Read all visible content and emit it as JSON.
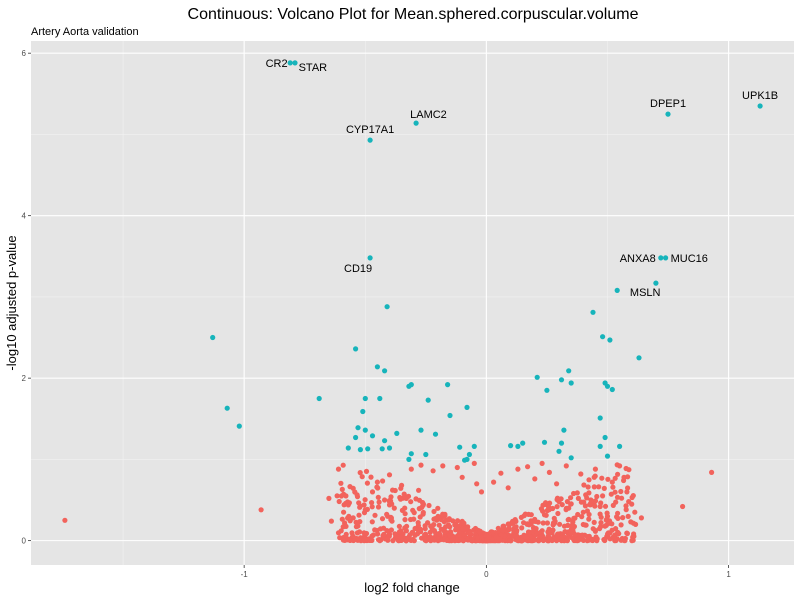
{
  "chart_data": {
    "type": "scatter",
    "title": "Continuous: Volcano Plot for Mean.sphered.corpuscular.volume",
    "subtitle": "Artery Aorta validation",
    "xlabel": "log2 fold change",
    "ylabel": "-log10 adjusted p-value",
    "xlim": [
      -1.88,
      1.27
    ],
    "ylim": [
      -0.3,
      6.15
    ],
    "x_ticks": [
      -1,
      0,
      1
    ],
    "x_tick_labels": [
      "-1",
      "0",
      "1"
    ],
    "y_ticks": [
      0,
      2,
      4,
      6
    ],
    "y_tick_labels": [
      "0",
      "2",
      "4",
      "6"
    ],
    "grid": true,
    "colors": {
      "panel": "#e5e5e5",
      "grid_major": "#ffffff",
      "significant": "#17b4bb",
      "not_significant": "#f2635c"
    },
    "series": [
      {
        "significant": true,
        "points": [
          [
            -0.81,
            5.88
          ],
          [
            -0.79,
            5.88
          ],
          [
            0.75,
            5.25
          ],
          [
            1.13,
            5.35
          ],
          [
            -0.29,
            5.14
          ],
          [
            -0.48,
            4.93
          ],
          [
            -0.48,
            3.48
          ],
          [
            0.72,
            3.48
          ],
          [
            0.74,
            3.48
          ],
          [
            0.7,
            3.17
          ],
          [
            0.54,
            3.08
          ],
          [
            -0.41,
            2.88
          ],
          [
            0.44,
            2.81
          ],
          [
            -1.13,
            2.5
          ],
          [
            0.48,
            2.51
          ],
          [
            0.51,
            2.47
          ],
          [
            -0.54,
            2.36
          ],
          [
            0.63,
            2.25
          ],
          [
            -0.45,
            2.14
          ],
          [
            -0.42,
            2.09
          ],
          [
            0.34,
            2.09
          ],
          [
            0.21,
            2.01
          ],
          [
            0.31,
            1.98
          ],
          [
            0.35,
            1.94
          ],
          [
            0.49,
            1.94
          ],
          [
            0.5,
            1.9
          ],
          [
            0.52,
            1.86
          ],
          [
            -0.32,
            1.9
          ],
          [
            -0.31,
            1.92
          ],
          [
            -0.16,
            1.92
          ],
          [
            0.25,
            1.85
          ],
          [
            -0.69,
            1.75
          ],
          [
            -0.5,
            1.75
          ],
          [
            -0.44,
            1.75
          ],
          [
            -0.24,
            1.73
          ],
          [
            -1.07,
            1.63
          ],
          [
            -0.08,
            1.64
          ],
          [
            -0.51,
            1.59
          ],
          [
            -0.15,
            1.54
          ],
          [
            0.47,
            1.51
          ],
          [
            -1.02,
            1.41
          ],
          [
            -0.53,
            1.39
          ],
          [
            -0.5,
            1.36
          ],
          [
            -0.27,
            1.36
          ],
          [
            0.32,
            1.36
          ],
          [
            -0.37,
            1.32
          ],
          [
            -0.21,
            1.31
          ],
          [
            -0.54,
            1.27
          ],
          [
            -0.47,
            1.29
          ],
          [
            0.49,
            1.27
          ],
          [
            -0.42,
            1.23
          ],
          [
            0.15,
            1.2
          ],
          [
            0.24,
            1.21
          ],
          [
            0.31,
            1.2
          ],
          [
            -0.57,
            1.14
          ],
          [
            -0.52,
            1.12
          ],
          [
            -0.49,
            1.13
          ],
          [
            -0.43,
            1.13
          ],
          [
            -0.4,
            1.14
          ],
          [
            -0.11,
            1.15
          ],
          [
            -0.05,
            1.16
          ],
          [
            0.1,
            1.17
          ],
          [
            0.13,
            1.16
          ],
          [
            0.47,
            1.16
          ],
          [
            0.55,
            1.16
          ],
          [
            0.3,
            1.1
          ],
          [
            -0.31,
            1.07
          ],
          [
            -0.25,
            1.06
          ],
          [
            -0.07,
            1.06
          ],
          [
            0.35,
            1.02
          ],
          [
            -0.32,
            1.0
          ],
          [
            -0.08,
            1.0
          ],
          [
            0.5,
            1.04
          ],
          [
            -0.09,
            0.99
          ]
        ]
      },
      {
        "significant": false,
        "points": [
          [
            -1.74,
            0.25
          ],
          [
            -0.93,
            0.38
          ],
          [
            0.81,
            0.42
          ],
          [
            0.93,
            0.84
          ],
          [
            -0.65,
            0.52
          ],
          [
            -0.58,
            0.55
          ],
          [
            -0.64,
            0.24
          ],
          [
            -0.55,
            0.28
          ],
          [
            -0.57,
            0.44
          ],
          [
            -0.47,
            0.6
          ],
          [
            -0.45,
            0.72
          ],
          [
            -0.4,
            0.81
          ],
          [
            -0.35,
            0.68
          ],
          [
            -0.31,
            0.88
          ],
          [
            -0.27,
            0.93
          ],
          [
            -0.22,
            0.86
          ],
          [
            -0.18,
            0.92
          ],
          [
            -0.12,
            0.9
          ],
          [
            -0.1,
            0.78
          ],
          [
            -0.05,
            0.95
          ],
          [
            -0.04,
            0.7
          ],
          [
            -0.02,
            0.6
          ],
          [
            0.03,
            0.72
          ],
          [
            0.06,
            0.83
          ],
          [
            0.09,
            0.65
          ],
          [
            0.13,
            0.88
          ],
          [
            0.17,
            0.91
          ],
          [
            0.2,
            0.76
          ],
          [
            0.23,
            0.95
          ],
          [
            0.26,
            0.84
          ],
          [
            0.29,
            0.7
          ],
          [
            0.33,
            0.92
          ],
          [
            0.36,
            0.58
          ],
          [
            0.39,
            0.82
          ],
          [
            0.42,
            0.66
          ],
          [
            0.45,
            0.88
          ],
          [
            0.48,
            0.55
          ],
          [
            0.52,
            0.72
          ],
          [
            0.55,
            0.92
          ],
          [
            0.58,
            0.6
          ],
          [
            0.6,
            0.45
          ],
          [
            0.64,
            0.28
          ],
          [
            0.5,
            0.3
          ],
          [
            0.47,
            0.42
          ],
          [
            0.4,
            0.35
          ],
          [
            -0.5,
            0.38
          ],
          [
            -0.42,
            0.5
          ],
          [
            -0.38,
            0.4
          ],
          [
            -0.33,
            0.52
          ],
          [
            -0.28,
            0.62
          ],
          [
            -0.26,
            0.45
          ],
          [
            0.3,
            0.48
          ],
          [
            0.34,
            0.4
          ],
          [
            0.38,
            0.52
          ]
        ]
      }
    ],
    "labels": [
      {
        "text": "CR2",
        "x": -0.8,
        "y": 5.88,
        "pos": "left"
      },
      {
        "text": "STAR",
        "x": -0.8,
        "y": 5.88,
        "pos": "right-below"
      },
      {
        "text": "DPEP1",
        "x": 0.75,
        "y": 5.25,
        "pos": "above"
      },
      {
        "text": "UPK1B",
        "x": 1.13,
        "y": 5.35,
        "pos": "above"
      },
      {
        "text": "LAMC2",
        "x": -0.29,
        "y": 5.14,
        "pos": "above-right"
      },
      {
        "text": "CYP17A1",
        "x": -0.48,
        "y": 4.93,
        "pos": "above"
      },
      {
        "text": "CD19",
        "x": -0.48,
        "y": 3.48,
        "pos": "below-left"
      },
      {
        "text": "ANXA8",
        "x": 0.72,
        "y": 3.48,
        "pos": "left"
      },
      {
        "text": "MUC16",
        "x": 0.74,
        "y": 3.48,
        "pos": "right"
      },
      {
        "text": "MSLN",
        "x": 0.7,
        "y": 3.17,
        "pos": "below-left"
      }
    ]
  }
}
